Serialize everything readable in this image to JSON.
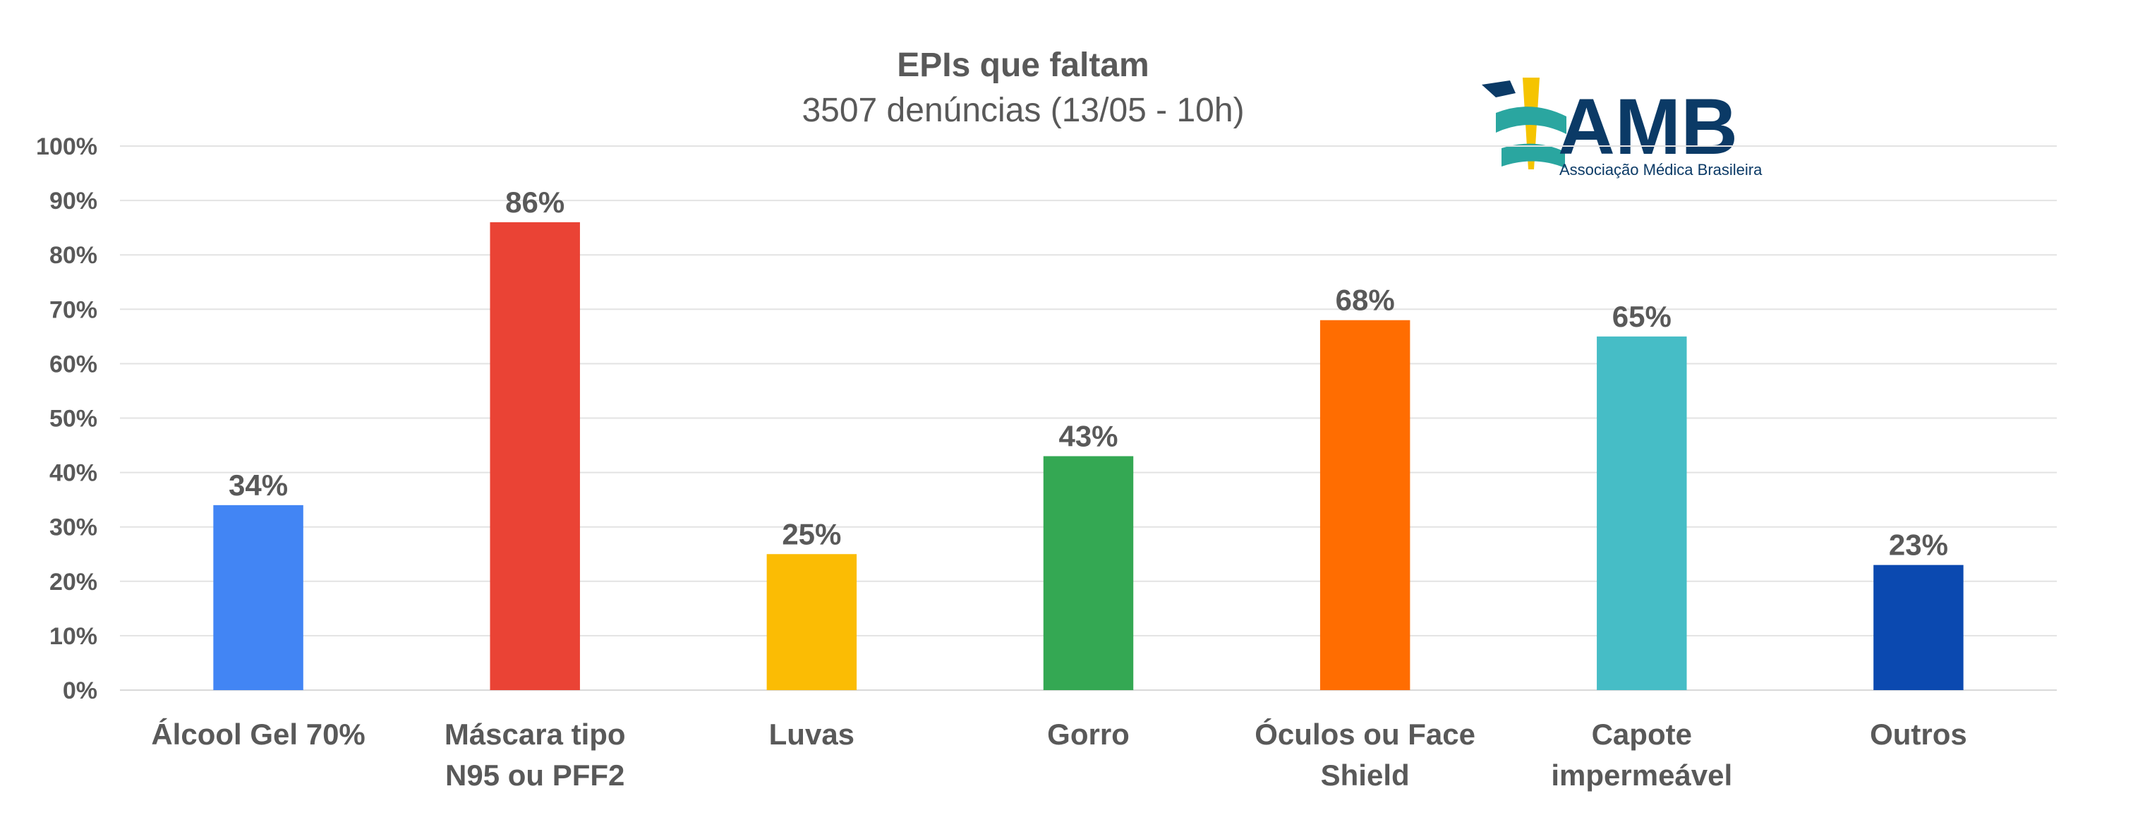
{
  "logo": {
    "name": "AMB",
    "subtitle": "Associação Médica Brasileira",
    "color": "#0b3a66"
  },
  "chart_data": {
    "type": "bar",
    "title": "EPIs que faltam",
    "subtitle": "3507 denúncias (13/05 - 10h)",
    "categories": [
      [
        "Álcool Gel 70%"
      ],
      [
        "Máscara tipo",
        "N95 ou PFF2"
      ],
      [
        "Luvas"
      ],
      [
        "Gorro"
      ],
      [
        "Óculos ou Face",
        "Shield"
      ],
      [
        "Capote",
        "impermeável"
      ],
      [
        "Outros"
      ]
    ],
    "values": [
      34,
      86,
      25,
      43,
      68,
      65,
      23
    ],
    "data_labels": [
      "34%",
      "86%",
      "25%",
      "43%",
      "68%",
      "65%",
      "23%"
    ],
    "colors": [
      "#4285f4",
      "#ea4335",
      "#fbbc04",
      "#34a853",
      "#ff6d01",
      "#46bdc6",
      "#0b49b0"
    ],
    "y_ticks": [
      "0%",
      "10%",
      "20%",
      "30%",
      "40%",
      "50%",
      "60%",
      "70%",
      "80%",
      "90%",
      "100%"
    ],
    "ylim": [
      0,
      100
    ],
    "grid": true,
    "legend": "none"
  }
}
